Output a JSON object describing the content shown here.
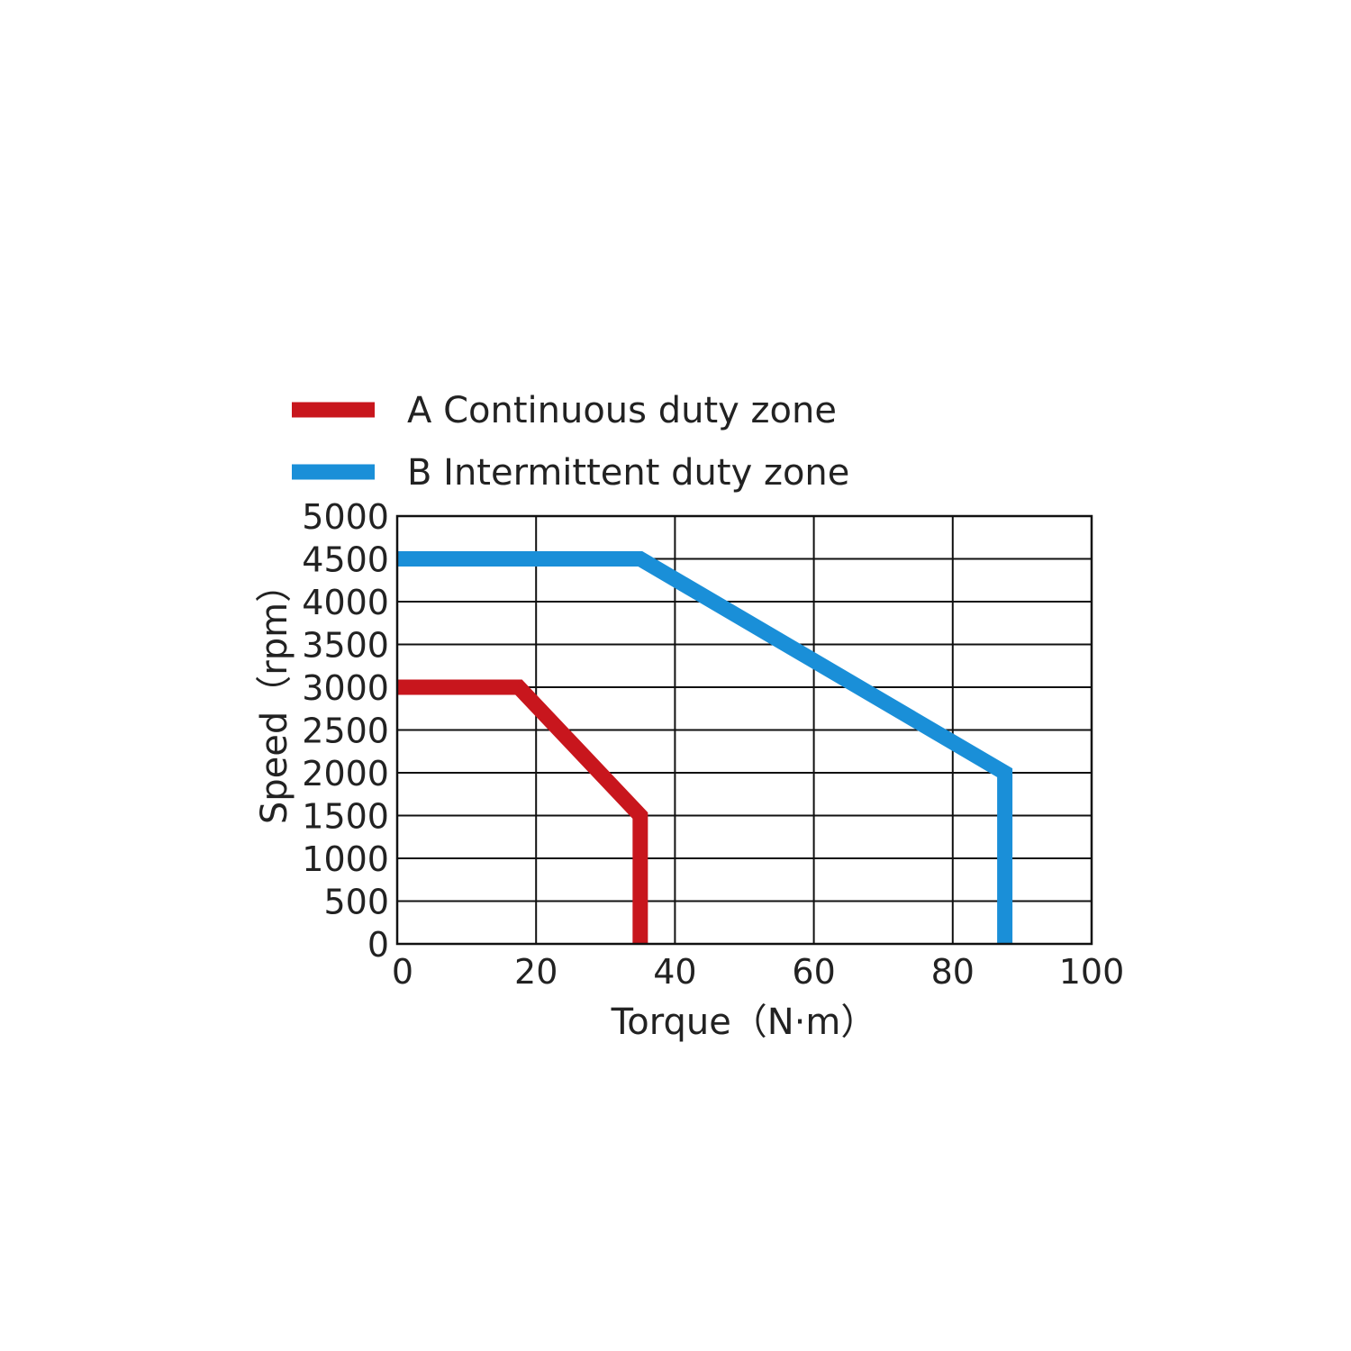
{
  "chart_data": {
    "type": "line",
    "xlabel": "Torque（N·m）",
    "ylabel": "Speed（rpm）",
    "xlim": [
      0,
      100
    ],
    "ylim": [
      0,
      5000
    ],
    "x_ticks": [
      0,
      20,
      40,
      60,
      80,
      100
    ],
    "y_ticks": [
      0,
      500,
      1000,
      1500,
      2000,
      2500,
      3000,
      3500,
      4000,
      4500,
      5000
    ],
    "grid": true,
    "legend_position": "top-left",
    "series": [
      {
        "name": "A Continuous duty zone",
        "color": "#c8161d",
        "points": [
          {
            "x": 0,
            "y": 3000
          },
          {
            "x": 17.5,
            "y": 3000
          },
          {
            "x": 35,
            "y": 1500
          },
          {
            "x": 35,
            "y": 0
          }
        ]
      },
      {
        "name": "B Intermittent duty zone",
        "color": "#1a8fd8",
        "points": [
          {
            "x": 0,
            "y": 4500
          },
          {
            "x": 35,
            "y": 4500
          },
          {
            "x": 87.5,
            "y": 2000
          },
          {
            "x": 87.5,
            "y": 0
          }
        ]
      }
    ]
  }
}
